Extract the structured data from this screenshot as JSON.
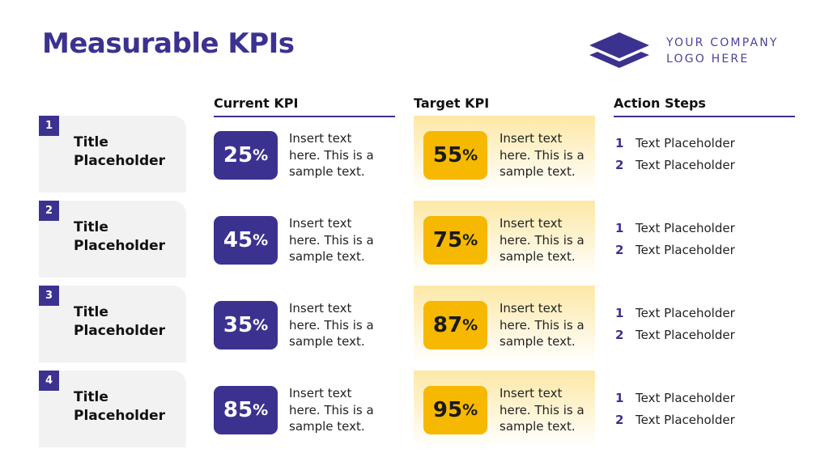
{
  "header": {
    "title": "Measurable KPIs"
  },
  "logo": {
    "lines": [
      "YOUR COMPANY",
      "LOGO HERE"
    ]
  },
  "columns": [
    "Current KPI",
    "Target KPI",
    "Action Steps"
  ],
  "rows": [
    {
      "number": "1",
      "title": "Title Placeholder",
      "current": {
        "value": "25",
        "unit": "%",
        "text": "Insert text here. This is a sample text."
      },
      "target": {
        "value": "55",
        "unit": "%",
        "text": "Insert text here. This is a sample text."
      },
      "actions": [
        {
          "number": "1",
          "text": "Text Placeholder"
        },
        {
          "number": "2",
          "text": "Text Placeholder"
        }
      ]
    },
    {
      "number": "2",
      "title": "Title Placeholder",
      "current": {
        "value": "45",
        "unit": "%",
        "text": "Insert text here. This is a sample text."
      },
      "target": {
        "value": "75",
        "unit": "%",
        "text": "Insert text here. This is a sample text."
      },
      "actions": [
        {
          "number": "1",
          "text": "Text Placeholder"
        },
        {
          "number": "2",
          "text": "Text Placeholder"
        }
      ]
    },
    {
      "number": "3",
      "title": "Title Placeholder",
      "current": {
        "value": "35",
        "unit": "%",
        "text": "Insert text here. This is a sample text."
      },
      "target": {
        "value": "87",
        "unit": "%",
        "text": "Insert text here. This is a sample text."
      },
      "actions": [
        {
          "number": "1",
          "text": "Text Placeholder"
        },
        {
          "number": "2",
          "text": "Text Placeholder"
        }
      ]
    },
    {
      "number": "4",
      "title": "Title Placeholder",
      "current": {
        "value": "85",
        "unit": "%",
        "text": "Insert text here. This is a sample text."
      },
      "target": {
        "value": "95",
        "unit": "%",
        "text": "Insert text here. This is a sample text."
      },
      "actions": [
        {
          "number": "1",
          "text": "Text Placeholder"
        },
        {
          "number": "2",
          "text": "Text Placeholder"
        }
      ]
    }
  ]
}
